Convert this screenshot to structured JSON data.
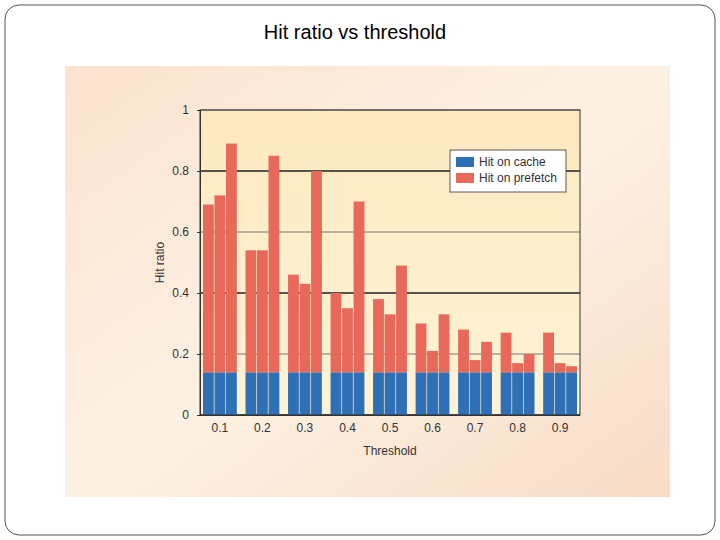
{
  "chart_data": {
    "type": "bar",
    "stacked": true,
    "title": "Hit ratio vs threshold",
    "x_label": "Threshold",
    "y_label": "Hit ratio",
    "categories": [
      null,
      "0.1",
      null,
      null,
      "0.2",
      null,
      null,
      "0.3",
      null,
      null,
      "0.4",
      null,
      null,
      "0.5",
      null,
      null,
      "0.6",
      null,
      null,
      "0.7",
      null,
      null,
      "0.8",
      null,
      null,
      "0.9",
      null
    ],
    "series": [
      {
        "name": "Hit on cache",
        "color": "#2f6fb6",
        "values": [
          0.14,
          0.14,
          0.14,
          0.14,
          0.14,
          0.14,
          0.14,
          0.14,
          0.14,
          0.14,
          0.14,
          0.14,
          0.14,
          0.14,
          0.14,
          0.14,
          0.14,
          0.14,
          0.14,
          0.14,
          0.14,
          0.14,
          0.14,
          0.14,
          0.14,
          0.14,
          0.14
        ]
      },
      {
        "name": "Hit on prefetch",
        "color": "#e8695a",
        "values": [
          0.55,
          0.58,
          0.75,
          0.4,
          0.4,
          0.71,
          0.32,
          0.29,
          0.66,
          0.26,
          0.21,
          0.56,
          0.24,
          0.19,
          0.35,
          0.16,
          0.07,
          0.19,
          0.14,
          0.04,
          0.1,
          0.13,
          0.03,
          0.06,
          0.13,
          0.03,
          0.02
        ]
      }
    ],
    "ylim": [
      0,
      1
    ],
    "yticks": [
      0,
      0.2,
      0.4,
      0.6,
      0.8,
      1
    ],
    "grid": true,
    "legend": "top-right"
  }
}
